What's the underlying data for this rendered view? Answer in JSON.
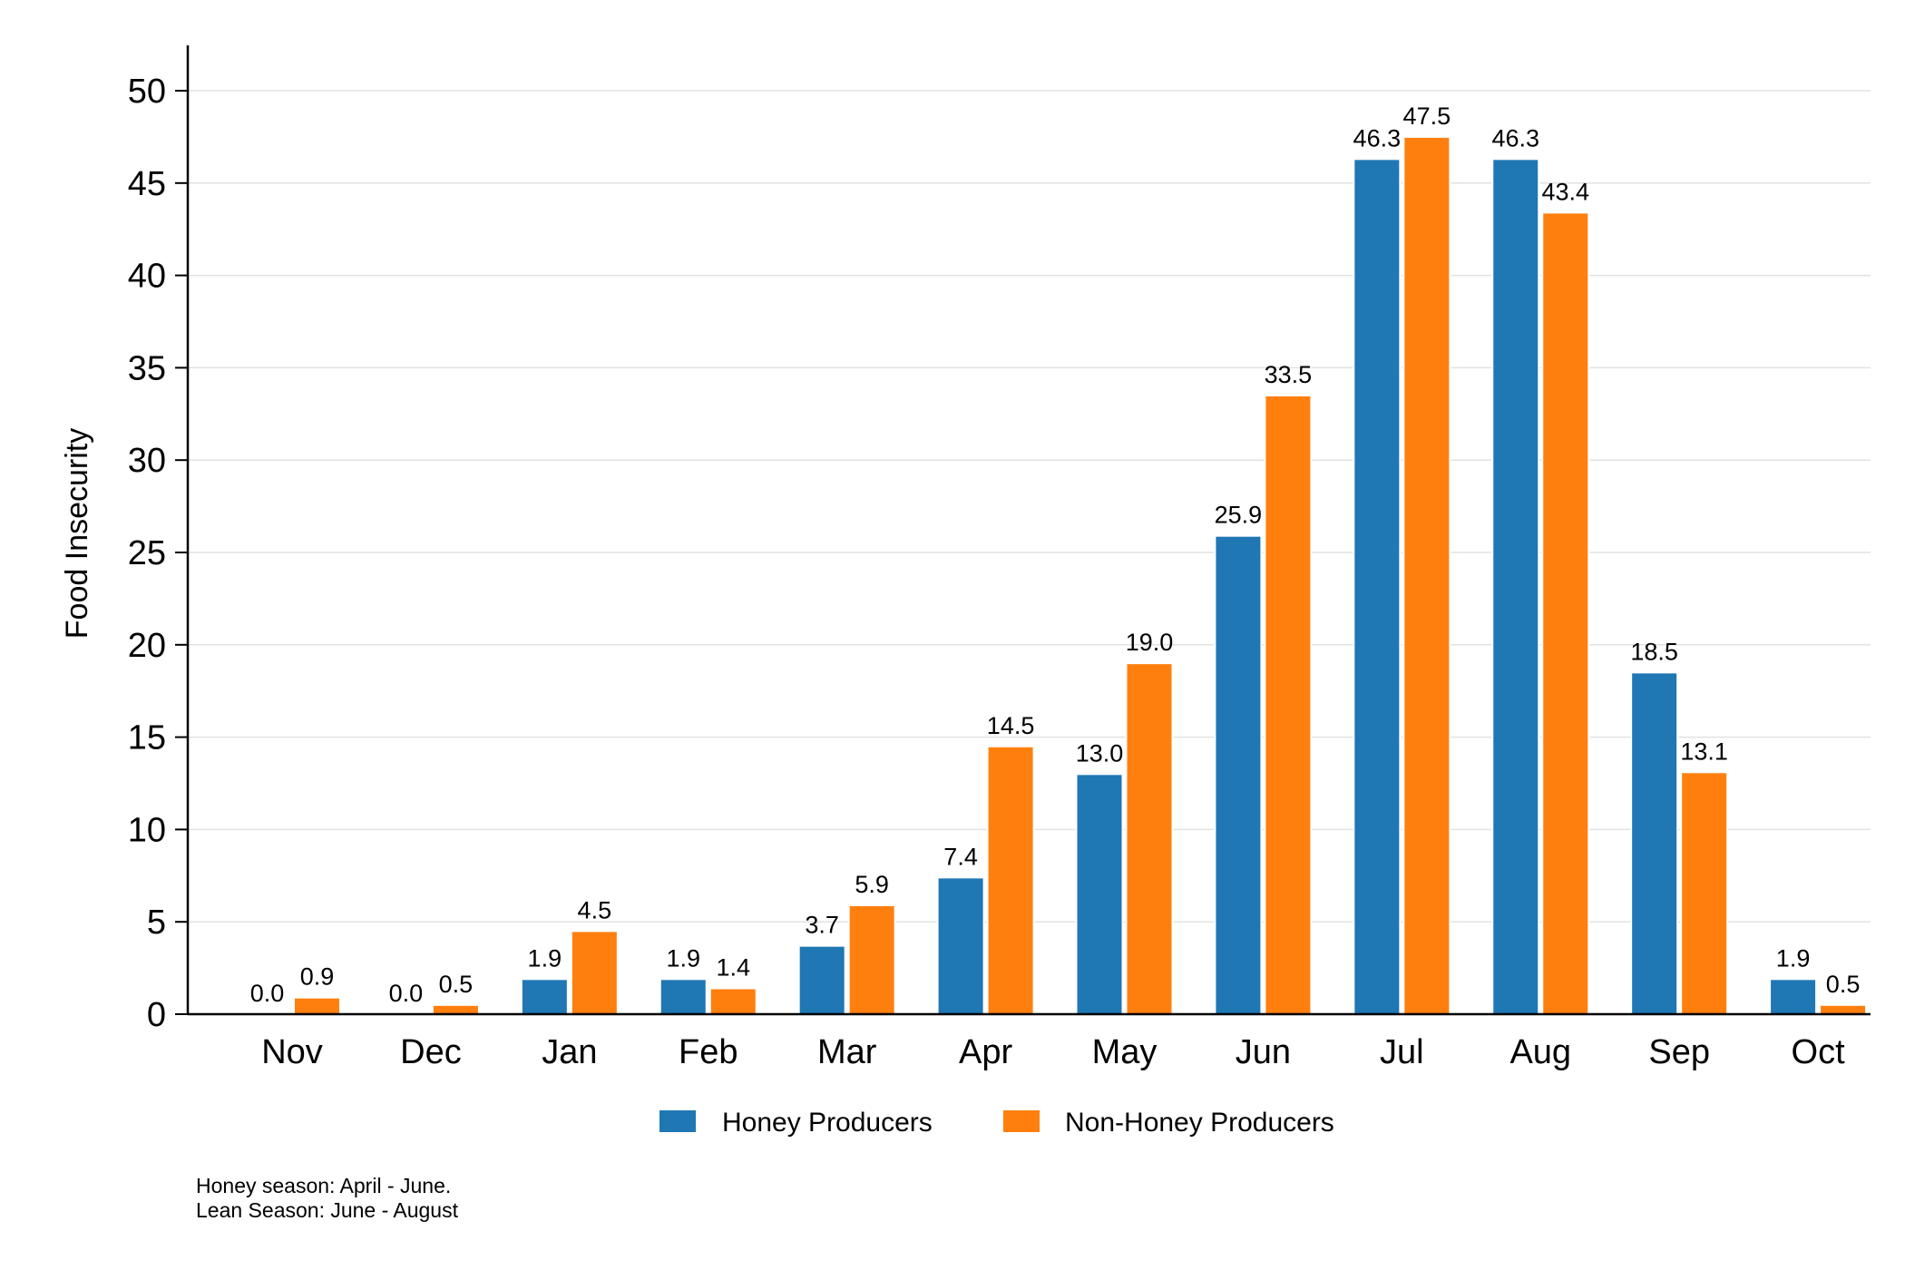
{
  "chart_data": {
    "type": "bar",
    "categories": [
      "Nov",
      "Dec",
      "Jan",
      "Feb",
      "Mar",
      "Apr",
      "May",
      "Jun",
      "Jul",
      "Aug",
      "Sep",
      "Oct"
    ],
    "series": [
      {
        "name": "Honey Producers",
        "color": "#1f77b4",
        "values": [
          0.0,
          0.0,
          1.9,
          1.9,
          3.7,
          7.4,
          13.0,
          25.9,
          46.3,
          46.3,
          18.5,
          1.9
        ]
      },
      {
        "name": "Non-Honey Producers",
        "color": "#ff7f0e",
        "values": [
          0.9,
          0.5,
          4.5,
          1.4,
          5.9,
          14.5,
          19.0,
          33.5,
          47.5,
          43.4,
          13.1,
          0.5
        ]
      }
    ],
    "ylabel": "Food Insecurity",
    "xlabel": "",
    "ylim": [
      0,
      52
    ],
    "yticks": [
      0,
      5,
      10,
      15,
      20,
      25,
      30,
      35,
      40,
      45,
      50
    ],
    "grid": true,
    "legend": "bottom"
  },
  "notes": [
    "Honey season: April - June.",
    "Lean Season: June - August"
  ]
}
